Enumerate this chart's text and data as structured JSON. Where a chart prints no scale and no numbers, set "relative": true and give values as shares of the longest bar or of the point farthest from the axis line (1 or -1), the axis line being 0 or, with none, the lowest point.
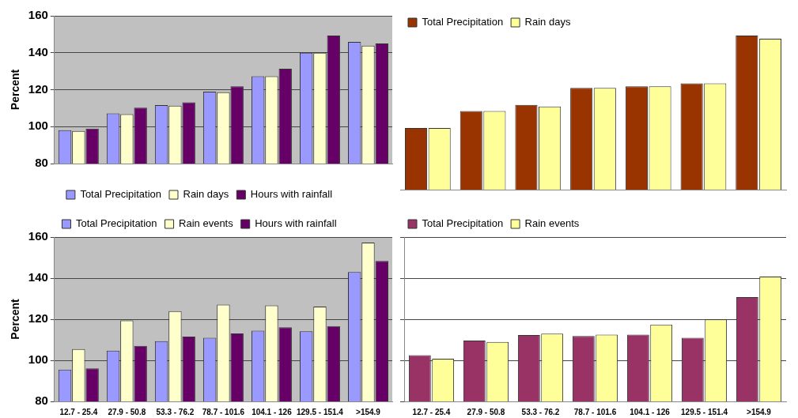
{
  "chart_data": [
    {
      "type": "bar",
      "ylabel": "Percent",
      "categories": [
        null,
        null,
        null,
        null,
        null,
        null,
        null
      ],
      "series": [
        {
          "name": "Total Precipitation",
          "color": "#9999ff",
          "values": [
            98.1,
            107.2,
            111.7,
            118.9,
            127.3,
            140,
            145.9
          ]
        },
        {
          "name": "Rain days",
          "color": "#ffffcc",
          "values": [
            97.7,
            106.7,
            111.3,
            118.6,
            127.3,
            140,
            143.9
          ]
        },
        {
          "name": "Hours with rainfall",
          "color": "#660066",
          "values": [
            98.9,
            110.3,
            113.2,
            121.8,
            131.3,
            149.3,
            145
          ]
        }
      ],
      "ylim": [
        80,
        160
      ],
      "yticks": [
        80,
        100,
        120,
        140,
        160
      ],
      "grid": "y",
      "legend": "bottom"
    },
    {
      "type": "bar",
      "categories": [
        null,
        null,
        null,
        null,
        null,
        null,
        null
      ],
      "series": [
        {
          "name": "Total Precipitation",
          "color": "#993300",
          "values": [
            0.4,
            0.51,
            0.55,
            0.66,
            0.67,
            0.69,
            1
          ]
        },
        {
          "name": "Rain days",
          "color": "#ffff99",
          "values": [
            0.4,
            0.51,
            0.54,
            0.66,
            0.67,
            0.69,
            0.98
          ]
        }
      ],
      "relative": true,
      "legend": "top left"
    },
    {
      "type": "bar",
      "ylabel": "Percent",
      "categories": [
        "12.7 - 25.4",
        "27.9 - 50.8",
        "53.3 - 76.2",
        "78.7 - 101.6",
        "104.1 - 126",
        "129.5 - 151.4",
        ">154.9"
      ],
      "series": [
        {
          "name": "Total Precipitation",
          "color": "#9999ff",
          "values": [
            95.5,
            104.7,
            109.3,
            111,
            114.4,
            114.1,
            143
          ]
        },
        {
          "name": "Rain events",
          "color": "#ffffcc",
          "values": [
            105.5,
            119.4,
            123.9,
            127.1,
            126.7,
            126.2,
            157.3
          ]
        },
        {
          "name": "Hours with rainfall",
          "color": "#660066",
          "values": [
            96.1,
            107,
            111.5,
            113.1,
            116.1,
            116.6,
            148.4
          ]
        }
      ],
      "ylim": [
        80,
        160
      ],
      "yticks": [
        80,
        100,
        120,
        140,
        160
      ],
      "grid": "y",
      "legend": "top"
    },
    {
      "type": "bar",
      "categories": [
        "12.7 - 25.4",
        "27.9 - 50.8",
        "53.3 - 76.2",
        "78.7 - 101.6",
        "104.1 - 126",
        "129.5 - 151.4",
        ">154.9"
      ],
      "series": [
        {
          "name": "Total Precipitation",
          "color": "#993366",
          "values": [
            102.5,
            109.6,
            112.3,
            111.8,
            112.5,
            111,
            130.8
          ]
        },
        {
          "name": "Rain events",
          "color": "#ffff99",
          "values": [
            100.8,
            108.9,
            113,
            112.5,
            117.4,
            119.9,
            140.8
          ]
        }
      ],
      "ylim": [
        80,
        160
      ],
      "yticks": [
        80,
        100,
        120,
        140,
        160
      ],
      "grid": "y",
      "legend": "top left",
      "tick_labels": "x"
    }
  ]
}
